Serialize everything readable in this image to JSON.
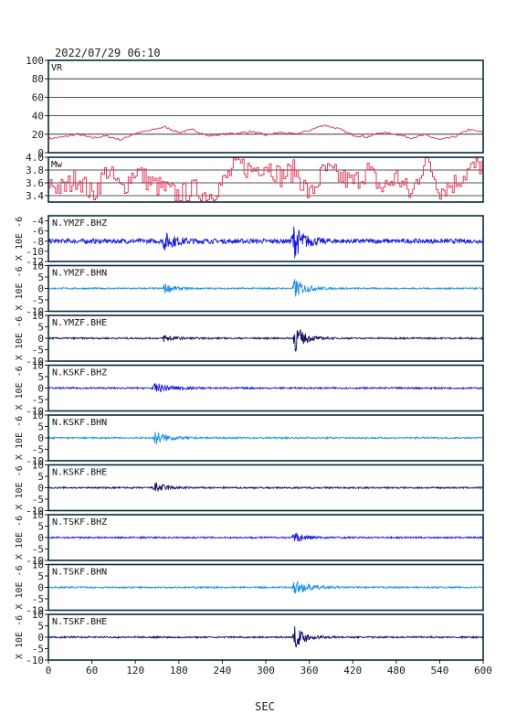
{
  "header": {
    "datetime": "2022/07/29  06:10"
  },
  "chart_data": {
    "type": "line",
    "xlabel": "SEC",
    "xlim": [
      0,
      600
    ],
    "xticks": [
      0,
      60,
      120,
      180,
      240,
      300,
      360,
      420,
      480,
      540,
      600
    ],
    "colors": {
      "frame": "#0b2a3a",
      "grid": "#1a1a1a",
      "vr": "#e0284a",
      "mw": "#e0284a",
      "bhz": "#1818d8",
      "bhn": "#1c8fe0",
      "bhe": "#101060"
    },
    "vr_panel": {
      "label": "VR",
      "ylim": [
        0,
        100
      ],
      "yticks": [
        0,
        20,
        40,
        60,
        80,
        100
      ],
      "x": [
        0,
        20,
        40,
        60,
        80,
        100,
        120,
        140,
        160,
        180,
        200,
        220,
        240,
        260,
        280,
        300,
        320,
        340,
        360,
        380,
        400,
        420,
        440,
        460,
        480,
        500,
        520,
        540,
        560,
        580,
        600
      ],
      "y": [
        15,
        17,
        20,
        16,
        18,
        14,
        21,
        24,
        28,
        22,
        25,
        18,
        20,
        21,
        23,
        19,
        22,
        20,
        24,
        30,
        26,
        19,
        17,
        22,
        20,
        16,
        19,
        14,
        17,
        25,
        22
      ]
    },
    "mw_panel": {
      "label": "Mw",
      "ylim": [
        3.3,
        4.0
      ],
      "yticks": [
        3.4,
        3.6,
        3.8,
        4.0
      ],
      "x": [
        0,
        20,
        40,
        60,
        80,
        100,
        120,
        140,
        160,
        180,
        200,
        220,
        240,
        260,
        280,
        300,
        320,
        340,
        360,
        380,
        400,
        420,
        440,
        460,
        480,
        500,
        520,
        540,
        560,
        580,
        600
      ],
      "y": [
        3.6,
        3.5,
        3.7,
        3.4,
        3.8,
        3.5,
        3.8,
        3.6,
        3.5,
        3.4,
        3.5,
        3.4,
        3.6,
        3.9,
        3.8,
        3.9,
        3.7,
        3.8,
        3.4,
        3.8,
        3.7,
        3.6,
        3.8,
        3.5,
        3.7,
        3.4,
        4.0,
        3.5,
        3.6,
        3.8,
        3.9
      ]
    },
    "wave_panels": [
      {
        "label": "N.YMZF.BHZ",
        "ylabel": "X 10E -6",
        "ylim": [
          -12,
          -3
        ],
        "yticks": [
          -12,
          -10,
          -8,
          -6,
          -4
        ],
        "baseline": -8,
        "noise": 0.45,
        "color_key": "bhz",
        "events": [
          {
            "t": 160,
            "amp": 1.6,
            "width": 16
          },
          {
            "t": 338,
            "amp": 3.4,
            "width": 14
          }
        ]
      },
      {
        "label": "N.YMZF.BHN",
        "ylabel": "X 10E -6",
        "ylim": [
          -10,
          10
        ],
        "yticks": [
          -10,
          -5,
          0,
          5,
          10
        ],
        "baseline": 0,
        "noise": 0.35,
        "color_key": "bhn",
        "events": [
          {
            "t": 160,
            "amp": 2.2,
            "width": 12
          },
          {
            "t": 340,
            "amp": 4.5,
            "width": 14
          }
        ]
      },
      {
        "label": "N.YMZF.BHE",
        "ylabel": "X 10E -6",
        "ylim": [
          -10,
          10
        ],
        "yticks": [
          -10,
          -5,
          0,
          5,
          10
        ],
        "baseline": 0,
        "noise": 0.35,
        "color_key": "bhe",
        "events": [
          {
            "t": 160,
            "amp": 1.8,
            "width": 12
          },
          {
            "t": 340,
            "amp": 6.5,
            "width": 12
          }
        ]
      },
      {
        "label": "N.KSKF.BHZ",
        "ylabel": "X 10E -6",
        "ylim": [
          -10,
          10
        ],
        "yticks": [
          -10,
          -5,
          0,
          5,
          10
        ],
        "baseline": 0,
        "noise": 0.35,
        "color_key": "bhz",
        "events": [
          {
            "t": 148,
            "amp": 2.0,
            "width": 22
          }
        ]
      },
      {
        "label": "N.KSKF.BHN",
        "ylabel": "X 10E -6",
        "ylim": [
          -10,
          10
        ],
        "yticks": [
          -10,
          -5,
          0,
          5,
          10
        ],
        "baseline": 0,
        "noise": 0.35,
        "color_key": "bhn",
        "events": [
          {
            "t": 148,
            "amp": 3.0,
            "width": 16
          }
        ]
      },
      {
        "label": "N.KSKF.BHE",
        "ylabel": "X 10E -6",
        "ylim": [
          -10,
          10
        ],
        "yticks": [
          -10,
          -5,
          0,
          5,
          10
        ],
        "baseline": 0,
        "noise": 0.35,
        "color_key": "bhe",
        "events": [
          {
            "t": 148,
            "amp": 2.2,
            "width": 16
          }
        ]
      },
      {
        "label": "N.TSKF.BHZ",
        "ylabel": "X 10E -6",
        "ylim": [
          -10,
          10
        ],
        "yticks": [
          -10,
          -5,
          0,
          5,
          10
        ],
        "baseline": 0,
        "noise": 0.35,
        "color_key": "bhz",
        "events": [
          {
            "t": 340,
            "amp": 2.0,
            "width": 18
          }
        ]
      },
      {
        "label": "N.TSKF.BHN",
        "ylabel": "X 10E -6",
        "ylim": [
          -10,
          10
        ],
        "yticks": [
          -10,
          -5,
          0,
          5,
          10
        ],
        "baseline": 0,
        "noise": 0.35,
        "color_key": "bhn",
        "events": [
          {
            "t": 340,
            "amp": 3.0,
            "width": 20
          }
        ]
      },
      {
        "label": "N.TSKF.BHE",
        "ylabel": "X 10E -6",
        "ylim": [
          -10,
          10
        ],
        "yticks": [
          -10,
          -5,
          0,
          5,
          10
        ],
        "baseline": 0,
        "noise": 0.35,
        "color_key": "bhe",
        "events": [
          {
            "t": 340,
            "amp": 4.5,
            "width": 14
          }
        ]
      }
    ]
  }
}
